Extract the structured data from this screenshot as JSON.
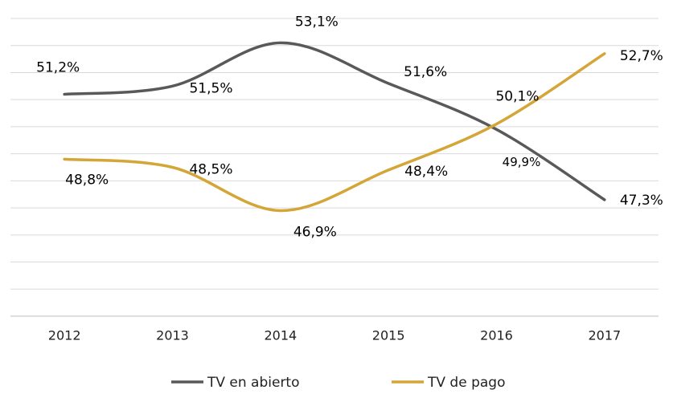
{
  "chart_data": {
    "type": "line",
    "categories": [
      "2012",
      "2013",
      "2014",
      "2015",
      "2016",
      "2017"
    ],
    "series": [
      {
        "name": "TV en abierto",
        "color": "#595959",
        "values": [
          51.2,
          51.5,
          53.1,
          51.6,
          49.9,
          47.3
        ],
        "value_labels": [
          "51,2%",
          "51,5%",
          "53,1%",
          "51,6%",
          "49,9%",
          "47,3%"
        ]
      },
      {
        "name": "TV de pago",
        "color": "#d4a537",
        "values": [
          48.8,
          48.5,
          46.9,
          48.4,
          50.1,
          52.7
        ],
        "value_labels": [
          "48,8%",
          "48,5%",
          "46,9%",
          "48,4%",
          "50,1%",
          "52,7%"
        ]
      }
    ],
    "ylim": [
      43,
      54
    ],
    "yticks": [
      43,
      44,
      45,
      46,
      47,
      48,
      49,
      50,
      51,
      52,
      53,
      54
    ],
    "grid": true
  }
}
